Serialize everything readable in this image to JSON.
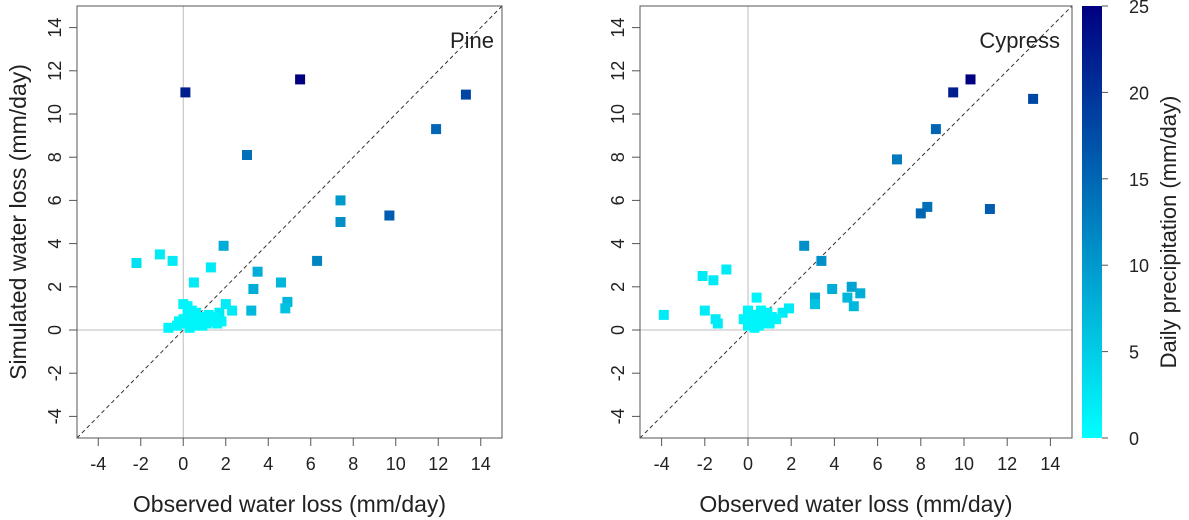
{
  "colorbar": {
    "label": "Daily precipitation (mm/day)",
    "range": [
      0,
      25
    ],
    "ticks": [
      0,
      5,
      10,
      15,
      20,
      25
    ],
    "color_low": "#00ffff",
    "color_high": "#000080"
  },
  "chart_data": [
    {
      "type": "scatter",
      "title": "Pine",
      "xlabel": "Observed water loss (mm/day)",
      "ylabel": "Simulated water loss (mm/day)",
      "xlim": [
        -5,
        15
      ],
      "ylim": [
        -5,
        15
      ],
      "xticks": [
        -4,
        -2,
        0,
        2,
        4,
        6,
        8,
        10,
        12,
        14
      ],
      "yticks": [
        -4,
        -2,
        0,
        2,
        4,
        6,
        8,
        10,
        12,
        14
      ],
      "reference_lines": [
        "x=0",
        "y=0",
        "1:1"
      ],
      "grid": false,
      "marker": "square",
      "points": [
        {
          "x": 0.1,
          "y": 11.0,
          "p": 22
        },
        {
          "x": 5.5,
          "y": 11.6,
          "p": 25
        },
        {
          "x": 13.3,
          "y": 10.9,
          "p": 18
        },
        {
          "x": 11.9,
          "y": 9.3,
          "p": 15
        },
        {
          "x": 3.0,
          "y": 8.1,
          "p": 14
        },
        {
          "x": 7.4,
          "y": 6.0,
          "p": 10
        },
        {
          "x": 7.4,
          "y": 5.0,
          "p": 11
        },
        {
          "x": 9.7,
          "y": 5.3,
          "p": 16
        },
        {
          "x": 6.3,
          "y": 3.2,
          "p": 12
        },
        {
          "x": 1.9,
          "y": 3.9,
          "p": 8
        },
        {
          "x": 3.5,
          "y": 2.7,
          "p": 8
        },
        {
          "x": 4.6,
          "y": 2.2,
          "p": 7
        },
        {
          "x": 3.3,
          "y": 1.9,
          "p": 8
        },
        {
          "x": 4.9,
          "y": 1.3,
          "p": 7
        },
        {
          "x": 4.8,
          "y": 1.0,
          "p": 6
        },
        {
          "x": 3.2,
          "y": 0.9,
          "p": 7
        },
        {
          "x": -2.2,
          "y": 3.1,
          "p": 3
        },
        {
          "x": -1.1,
          "y": 3.5,
          "p": 2
        },
        {
          "x": -0.5,
          "y": 3.2,
          "p": 2
        },
        {
          "x": 1.3,
          "y": 2.9,
          "p": 2
        },
        {
          "x": 0.5,
          "y": 2.2,
          "p": 2
        },
        {
          "x": 2.0,
          "y": 1.2,
          "p": 2
        },
        {
          "x": 2.3,
          "y": 0.9,
          "p": 2
        },
        {
          "x": 1.7,
          "y": 0.8,
          "p": 2
        },
        {
          "x": -0.7,
          "y": 0.1,
          "p": 1
        },
        {
          "x": -0.3,
          "y": 0.2,
          "p": 1
        },
        {
          "x": 0.0,
          "y": 1.2,
          "p": 1
        },
        {
          "x": 0.2,
          "y": 1.1,
          "p": 1
        },
        {
          "x": 0.4,
          "y": 0.9,
          "p": 1
        },
        {
          "x": 0.6,
          "y": 0.8,
          "p": 1
        },
        {
          "x": 0.8,
          "y": 0.6,
          "p": 1
        },
        {
          "x": 1.0,
          "y": 0.5,
          "p": 1
        },
        {
          "x": 1.2,
          "y": 0.7,
          "p": 1
        },
        {
          "x": 1.4,
          "y": 0.4,
          "p": 1
        },
        {
          "x": 1.6,
          "y": 0.3,
          "p": 1
        },
        {
          "x": 1.8,
          "y": 0.4,
          "p": 1
        },
        {
          "x": 0.0,
          "y": 0.5,
          "p": 1
        },
        {
          "x": 0.1,
          "y": 0.3,
          "p": 1
        },
        {
          "x": 0.3,
          "y": 0.1,
          "p": 1
        },
        {
          "x": 0.5,
          "y": 0.2,
          "p": 1
        },
        {
          "x": 0.7,
          "y": 0.4,
          "p": 1
        },
        {
          "x": 0.9,
          "y": 0.2,
          "p": 1
        },
        {
          "x": 1.1,
          "y": 0.3,
          "p": 1
        },
        {
          "x": 0.2,
          "y": 0.7,
          "p": 1
        },
        {
          "x": 0.6,
          "y": 0.5,
          "p": 1
        },
        {
          "x": -0.2,
          "y": 0.4,
          "p": 1
        },
        {
          "x": 0.4,
          "y": 0.3,
          "p": 1
        },
        {
          "x": 1.5,
          "y": 0.6,
          "p": 1
        }
      ]
    },
    {
      "type": "scatter",
      "title": "Cypress",
      "xlabel": "Observed water loss (mm/day)",
      "ylabel": "",
      "xlim": [
        -5,
        15
      ],
      "ylim": [
        -5,
        15
      ],
      "xticks": [
        -4,
        -2,
        0,
        2,
        4,
        6,
        8,
        10,
        12,
        14
      ],
      "yticks": [
        -4,
        -2,
        0,
        2,
        4,
        6,
        8,
        10,
        12,
        14
      ],
      "reference_lines": [
        "x=0",
        "y=0",
        "1:1"
      ],
      "grid": false,
      "marker": "square",
      "points": [
        {
          "x": 10.3,
          "y": 11.6,
          "p": 25
        },
        {
          "x": 9.5,
          "y": 11.0,
          "p": 22
        },
        {
          "x": 13.2,
          "y": 10.7,
          "p": 18
        },
        {
          "x": 8.7,
          "y": 9.3,
          "p": 15
        },
        {
          "x": 6.9,
          "y": 7.9,
          "p": 13
        },
        {
          "x": 8.3,
          "y": 5.7,
          "p": 14
        },
        {
          "x": 8.0,
          "y": 5.4,
          "p": 15
        },
        {
          "x": 11.2,
          "y": 5.6,
          "p": 16
        },
        {
          "x": 2.6,
          "y": 3.9,
          "p": 11
        },
        {
          "x": 3.4,
          "y": 3.2,
          "p": 11
        },
        {
          "x": 4.8,
          "y": 2.0,
          "p": 9
        },
        {
          "x": 5.2,
          "y": 1.7,
          "p": 8
        },
        {
          "x": 3.9,
          "y": 1.9,
          "p": 8
        },
        {
          "x": 3.1,
          "y": 1.5,
          "p": 8
        },
        {
          "x": 4.6,
          "y": 1.5,
          "p": 7
        },
        {
          "x": 4.9,
          "y": 1.1,
          "p": 7
        },
        {
          "x": 3.1,
          "y": 1.2,
          "p": 6
        },
        {
          "x": -3.9,
          "y": 0.7,
          "p": 2
        },
        {
          "x": -2.1,
          "y": 2.5,
          "p": 2
        },
        {
          "x": -1.6,
          "y": 2.3,
          "p": 2
        },
        {
          "x": -1.0,
          "y": 2.8,
          "p": 2
        },
        {
          "x": -2.0,
          "y": 0.9,
          "p": 2
        },
        {
          "x": -1.5,
          "y": 0.5,
          "p": 2
        },
        {
          "x": -1.4,
          "y": 0.3,
          "p": 2
        },
        {
          "x": 0.4,
          "y": 1.5,
          "p": 1
        },
        {
          "x": 1.9,
          "y": 1.0,
          "p": 2
        },
        {
          "x": 1.6,
          "y": 0.8,
          "p": 2
        },
        {
          "x": 1.3,
          "y": 0.5,
          "p": 1
        },
        {
          "x": 1.0,
          "y": 0.3,
          "p": 1
        },
        {
          "x": 0.0,
          "y": 0.9,
          "p": 1
        },
        {
          "x": 0.2,
          "y": 0.7,
          "p": 1
        },
        {
          "x": 0.4,
          "y": 0.5,
          "p": 1
        },
        {
          "x": 0.6,
          "y": 0.9,
          "p": 1
        },
        {
          "x": 0.8,
          "y": 0.3,
          "p": 1
        },
        {
          "x": 0.1,
          "y": 0.3,
          "p": 1
        },
        {
          "x": 0.3,
          "y": 0.1,
          "p": 1
        },
        {
          "x": 0.5,
          "y": 0.2,
          "p": 1
        },
        {
          "x": 0.7,
          "y": 0.6,
          "p": 1
        },
        {
          "x": 0.9,
          "y": 0.8,
          "p": 1
        },
        {
          "x": 1.1,
          "y": 0.6,
          "p": 1
        },
        {
          "x": -0.2,
          "y": 0.5,
          "p": 1
        },
        {
          "x": 0.0,
          "y": 0.2,
          "p": 1
        }
      ]
    }
  ]
}
